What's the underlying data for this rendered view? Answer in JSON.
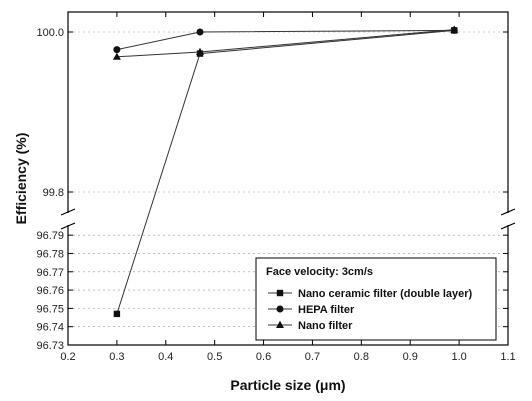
{
  "chart_data": {
    "type": "line",
    "xlabel": "Particle size (μm)",
    "ylabel": "Efficiency (%)",
    "xlim": [
      0.2,
      1.1
    ],
    "x_ticks": [
      "0.2",
      "0.3",
      "0.4",
      "0.5",
      "0.6",
      "0.7",
      "0.8",
      "0.9",
      "1.0",
      "1.1"
    ],
    "y_axis_break": true,
    "y_upper_range": [
      99.775,
      100.025
    ],
    "y_upper_ticks": [
      "99.8",
      "100.0"
    ],
    "y_lower_range": [
      96.73,
      96.795
    ],
    "y_lower_ticks": [
      "96.73",
      "96.74",
      "96.75",
      "96.76",
      "96.77",
      "96.78",
      "96.79"
    ],
    "grid": "dotted horizontal",
    "legend": {
      "placement": "bottom-right",
      "title": "Face velocity: 3cm/s"
    },
    "series": [
      {
        "name": "Nano ceramic filter (double layer)",
        "marker": "square",
        "x": [
          0.3,
          0.47,
          0.99
        ],
        "y": [
          96.747,
          99.973,
          100.002
        ]
      },
      {
        "name": "HEPA filter",
        "marker": "circle",
        "x": [
          0.3,
          0.47,
          0.99
        ],
        "y": [
          99.978,
          100.0,
          100.002
        ]
      },
      {
        "name": "Nano filter",
        "marker": "triangle",
        "x": [
          0.3,
          0.47,
          0.99
        ],
        "y": [
          99.969,
          99.975,
          100.003
        ]
      }
    ]
  }
}
